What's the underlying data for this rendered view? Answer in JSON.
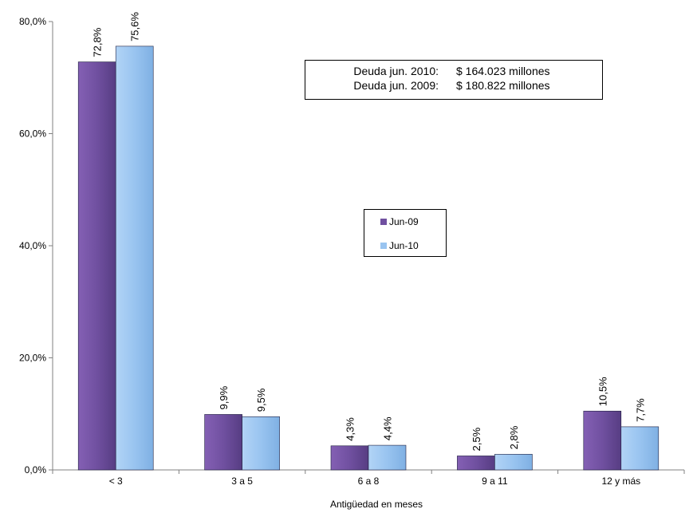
{
  "chart_data": {
    "type": "bar",
    "categories": [
      "< 3",
      "3 a 5",
      "6 a 8",
      "9 a 11",
      "12 y más"
    ],
    "series": [
      {
        "name": "Jun-09",
        "values": [
          72.8,
          9.9,
          4.3,
          2.5,
          10.5
        ],
        "labels": [
          "72,8%",
          "9,9%",
          "4,3%",
          "2,5%",
          "10,5%"
        ],
        "color": "#7050a0"
      },
      {
        "name": "Jun-10",
        "values": [
          75.6,
          9.5,
          4.4,
          2.8,
          7.7
        ],
        "labels": [
          "75,6%",
          "9,5%",
          "4,4%",
          "2,8%",
          "7,7%"
        ],
        "color": "#99c4f0"
      }
    ],
    "xlabel": "Antigüedad en meses",
    "ylabel": "",
    "ylim": [
      0,
      80
    ],
    "yticks": [
      0,
      20,
      40,
      60,
      80
    ],
    "ytick_labels": [
      "0,0%",
      "20,0%",
      "40,0%",
      "60,0%",
      "80,0%"
    ],
    "grid": false,
    "legend_position": "center",
    "data_label_orientation": "vertical"
  },
  "annotation": {
    "rows": [
      {
        "label": "Deuda jun. 2010:",
        "value": "$ 164.023 millones"
      },
      {
        "label": "Deuda jun. 2009:",
        "value": "$ 180.822 millones"
      }
    ]
  },
  "legend": {
    "items": [
      {
        "label": "Jun-09",
        "color": "#7050a0"
      },
      {
        "label": "Jun-10",
        "color": "#99c4f0"
      }
    ]
  }
}
